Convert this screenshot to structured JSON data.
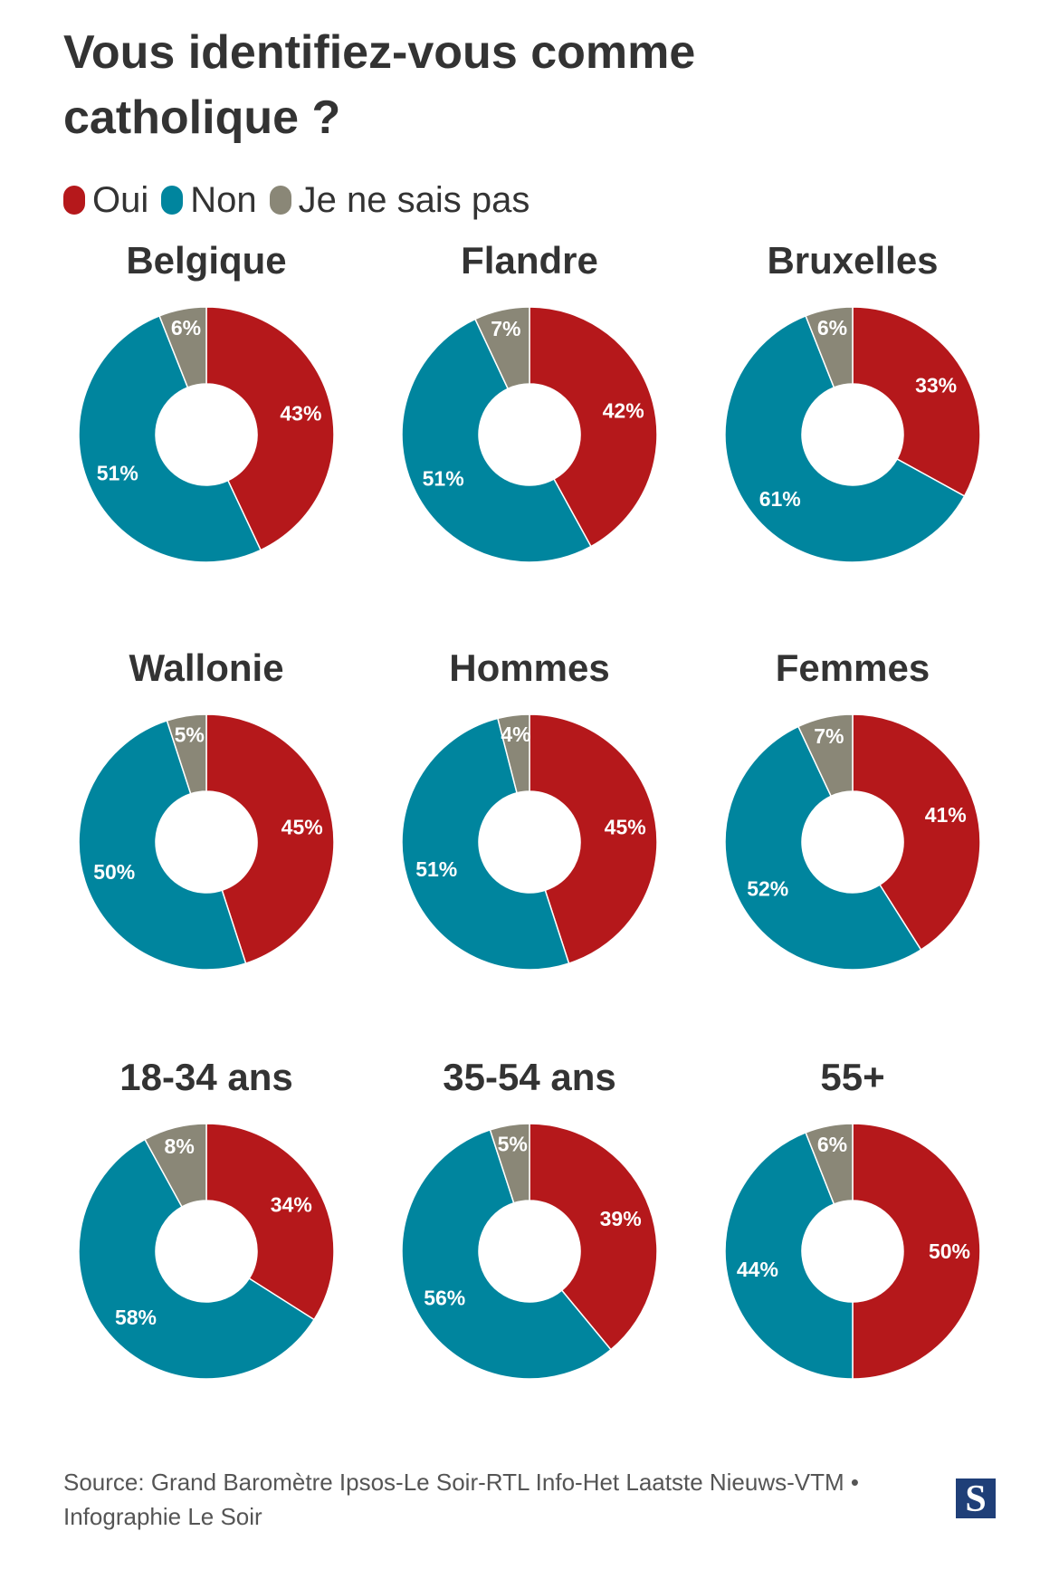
{
  "title": "Vous identifiez-vous comme catholique ?",
  "legend": [
    {
      "label": "Oui",
      "color": "#b5181b"
    },
    {
      "label": "Non",
      "color": "#00859e"
    },
    {
      "label": "Je ne sais pas",
      "color": "#8a8777"
    }
  ],
  "colors": {
    "oui": "#b5181b",
    "non": "#00859e",
    "nsp": "#8a8777"
  },
  "source": "Source: Grand Baromètre Ipsos-Le Soir-RTL Info-Het Laatste Nieuws-VTM • Infographie Le Soir",
  "logo": "S",
  "chart_data": [
    {
      "type": "pie",
      "title": "Belgique",
      "labels": [
        "Oui",
        "Non",
        "Je ne sais pas"
      ],
      "values": [
        43,
        51,
        6
      ],
      "display": [
        "43%",
        "51%",
        "6%"
      ]
    },
    {
      "type": "pie",
      "title": "Flandre",
      "labels": [
        "Oui",
        "Non",
        "Je ne sais pas"
      ],
      "values": [
        42,
        51,
        7
      ],
      "display": [
        "42%",
        "51%",
        "7%"
      ]
    },
    {
      "type": "pie",
      "title": "Bruxelles",
      "labels": [
        "Oui",
        "Non",
        "Je ne sais pas"
      ],
      "values": [
        33,
        61,
        6
      ],
      "display": [
        "33%",
        "61%",
        "6%"
      ]
    },
    {
      "type": "pie",
      "title": "Wallonie",
      "labels": [
        "Oui",
        "Non",
        "Je ne sais pas"
      ],
      "values": [
        45,
        50,
        5
      ],
      "display": [
        "45%",
        "50%",
        "5%"
      ]
    },
    {
      "type": "pie",
      "title": "Hommes",
      "labels": [
        "Oui",
        "Non",
        "Je ne sais pas"
      ],
      "values": [
        45,
        51,
        4
      ],
      "display": [
        "45%",
        "51%",
        "4%"
      ]
    },
    {
      "type": "pie",
      "title": "Femmes",
      "labels": [
        "Oui",
        "Non",
        "Je ne sais pas"
      ],
      "values": [
        41,
        52,
        7
      ],
      "display": [
        "41%",
        "52%",
        "7%"
      ]
    },
    {
      "type": "pie",
      "title": "18-34 ans",
      "labels": [
        "Oui",
        "Non",
        "Je ne sais pas"
      ],
      "values": [
        34,
        58,
        8
      ],
      "display": [
        "34%",
        "58%",
        "8%"
      ]
    },
    {
      "type": "pie",
      "title": "35-54 ans",
      "labels": [
        "Oui",
        "Non",
        "Je ne sais pas"
      ],
      "values": [
        39,
        56,
        5
      ],
      "display": [
        "39%",
        "56%",
        "5%"
      ]
    },
    {
      "type": "pie",
      "title": "55+",
      "labels": [
        "Oui",
        "Non",
        "Je ne sais pas"
      ],
      "values": [
        50,
        44,
        6
      ],
      "display": [
        "50%",
        "44%",
        "6%"
      ]
    }
  ]
}
